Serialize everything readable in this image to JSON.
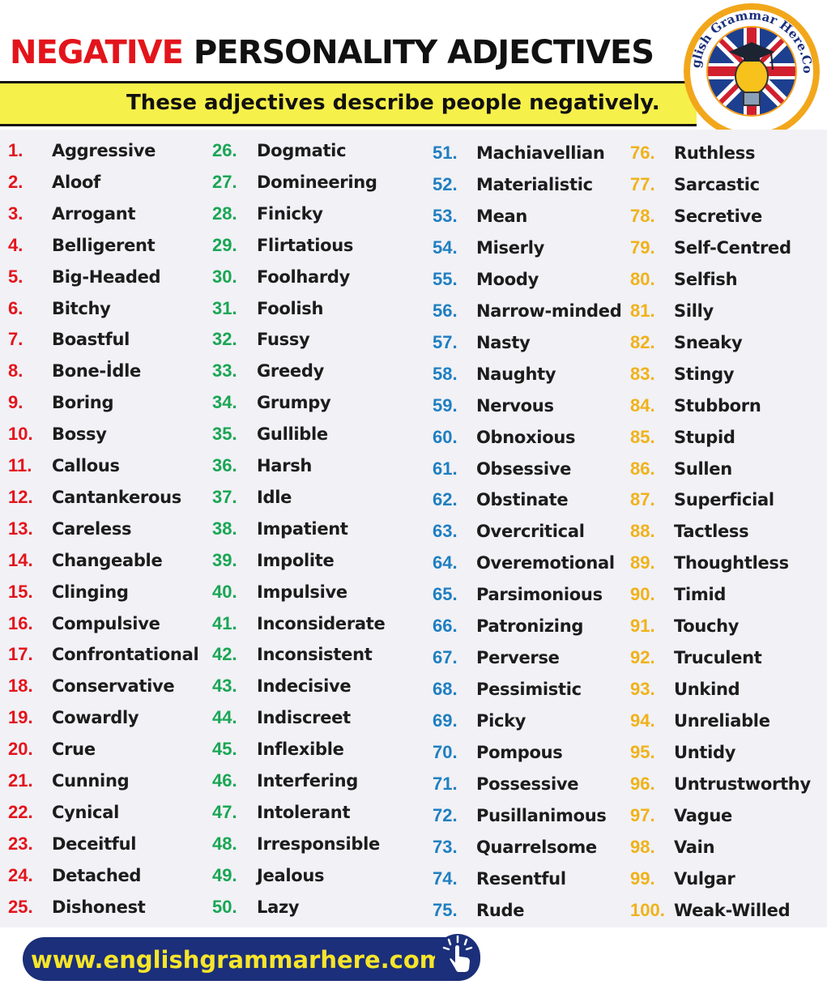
{
  "header": {
    "title_red": "NEGATIVE",
    "title_black": "PERSONALITY  ADJECTIVES",
    "subtitle": "These adjectives describe people negatively."
  },
  "logo": {
    "text": "English Grammar Here.Com"
  },
  "colors": {
    "title_red": "#e3141b",
    "subtitle_bg": "#f6f04b",
    "col1_numbers": "#e3141b",
    "col2_numbers": "#1aa654",
    "col3_numbers": "#1f7fc0",
    "col4_numbers": "#f0b21a",
    "footer_bg": "#1b2f7a",
    "footer_text": "#f6e52a"
  },
  "columns": [
    {
      "items": [
        {
          "num": "1.",
          "word": "Aggressive"
        },
        {
          "num": "2.",
          "word": "Aloof"
        },
        {
          "num": "3.",
          "word": "Arrogant"
        },
        {
          "num": "4.",
          "word": "Belligerent"
        },
        {
          "num": "5.",
          "word": "Big-Headed"
        },
        {
          "num": "6.",
          "word": "Bitchy"
        },
        {
          "num": "7.",
          "word": "Boastful"
        },
        {
          "num": "8.",
          "word": "Bone-İdle"
        },
        {
          "num": "9.",
          "word": "Boring"
        },
        {
          "num": "10.",
          "word": "Bossy"
        },
        {
          "num": "11.",
          "word": "Callous"
        },
        {
          "num": "12.",
          "word": "Cantankerous"
        },
        {
          "num": "13.",
          "word": "Careless"
        },
        {
          "num": "14.",
          "word": "Changeable"
        },
        {
          "num": "15.",
          "word": "Clinging"
        },
        {
          "num": "16.",
          "word": "Compulsive"
        },
        {
          "num": "17.",
          "word": "Confrontational"
        },
        {
          "num": "18.",
          "word": "Conservative"
        },
        {
          "num": "19.",
          "word": "Cowardly"
        },
        {
          "num": "20.",
          "word": "Crue"
        },
        {
          "num": "21.",
          "word": "Cunning"
        },
        {
          "num": "22.",
          "word": "Cynical"
        },
        {
          "num": "23.",
          "word": "Deceitful"
        },
        {
          "num": "24.",
          "word": "Detached"
        },
        {
          "num": "25.",
          "word": "Dishonest"
        }
      ]
    },
    {
      "items": [
        {
          "num": "26.",
          "word": "Dogmatic"
        },
        {
          "num": "27.",
          "word": "Domineering"
        },
        {
          "num": "28.",
          "word": "Finicky"
        },
        {
          "num": "29.",
          "word": "Flirtatious"
        },
        {
          "num": "30.",
          "word": "Foolhardy"
        },
        {
          "num": "31.",
          "word": "Foolish"
        },
        {
          "num": "32.",
          "word": "Fussy"
        },
        {
          "num": "33.",
          "word": "Greedy"
        },
        {
          "num": "34.",
          "word": "Grumpy"
        },
        {
          "num": "35.",
          "word": "Gullible"
        },
        {
          "num": "36.",
          "word": "Harsh"
        },
        {
          "num": "37.",
          "word": "Idle"
        },
        {
          "num": "38.",
          "word": "Impatient"
        },
        {
          "num": "39.",
          "word": "Impolite"
        },
        {
          "num": "40.",
          "word": "Impulsive"
        },
        {
          "num": "41.",
          "word": "Inconsiderate"
        },
        {
          "num": "42.",
          "word": "Inconsistent"
        },
        {
          "num": "43.",
          "word": "Indecisive"
        },
        {
          "num": "44.",
          "word": "Indiscreet"
        },
        {
          "num": "45.",
          "word": "Inflexible"
        },
        {
          "num": "46.",
          "word": "Interfering"
        },
        {
          "num": "47.",
          "word": "Intolerant"
        },
        {
          "num": "48.",
          "word": "Irresponsible"
        },
        {
          "num": "49.",
          "word": "Jealous"
        },
        {
          "num": "50.",
          "word": "Lazy"
        }
      ]
    },
    {
      "items": [
        {
          "num": "51.",
          "word": "Machiavellian"
        },
        {
          "num": "52.",
          "word": "Materialistic"
        },
        {
          "num": "53.",
          "word": "Mean"
        },
        {
          "num": "54.",
          "word": "Miserly"
        },
        {
          "num": "55.",
          "word": "Moody"
        },
        {
          "num": "56.",
          "word": "Narrow-minded"
        },
        {
          "num": "57.",
          "word": "Nasty"
        },
        {
          "num": "58.",
          "word": "Naughty"
        },
        {
          "num": "59.",
          "word": "Nervous"
        },
        {
          "num": "60.",
          "word": "Obnoxious"
        },
        {
          "num": "61.",
          "word": "Obsessive"
        },
        {
          "num": "62.",
          "word": "Obstinate"
        },
        {
          "num": "63.",
          "word": "Overcritical"
        },
        {
          "num": "64.",
          "word": "Overemotional"
        },
        {
          "num": "65.",
          "word": "Parsimonious"
        },
        {
          "num": "66.",
          "word": "Patronizing"
        },
        {
          "num": "67.",
          "word": "Perverse"
        },
        {
          "num": "68.",
          "word": "Pessimistic"
        },
        {
          "num": "69.",
          "word": "Picky"
        },
        {
          "num": "70.",
          "word": "Pompous"
        },
        {
          "num": "71.",
          "word": "Possessive"
        },
        {
          "num": "72.",
          "word": "Pusillanimous"
        },
        {
          "num": "73.",
          "word": "Quarrelsome"
        },
        {
          "num": "74.",
          "word": "Resentful"
        },
        {
          "num": "75.",
          "word": "Rude"
        }
      ]
    },
    {
      "items": [
        {
          "num": "76.",
          "word": "Ruthless"
        },
        {
          "num": "77.",
          "word": "Sarcastic"
        },
        {
          "num": "78.",
          "word": "Secretive"
        },
        {
          "num": "79.",
          "word": "Self-Centred"
        },
        {
          "num": "80.",
          "word": "Selfish"
        },
        {
          "num": "81.",
          "word": "Silly"
        },
        {
          "num": "82.",
          "word": "Sneaky"
        },
        {
          "num": "83.",
          "word": "Stingy"
        },
        {
          "num": "84.",
          "word": "Stubborn"
        },
        {
          "num": "85.",
          "word": "Stupid"
        },
        {
          "num": "86.",
          "word": "Sullen"
        },
        {
          "num": "87.",
          "word": "Superficial"
        },
        {
          "num": "88.",
          "word": "Tactless"
        },
        {
          "num": "89.",
          "word": "Thoughtless"
        },
        {
          "num": "90.",
          "word": "Timid"
        },
        {
          "num": "91.",
          "word": "Touchy"
        },
        {
          "num": "92.",
          "word": "Truculent"
        },
        {
          "num": "93.",
          "word": "Unkind"
        },
        {
          "num": "94.",
          "word": "Unreliable"
        },
        {
          "num": "95.",
          "word": "Untidy"
        },
        {
          "num": "96.",
          "word": "Untrustworthy"
        },
        {
          "num": "97.",
          "word": "Vague"
        },
        {
          "num": "98.",
          "word": "Vain"
        },
        {
          "num": "99.",
          "word": "Vulgar"
        },
        {
          "num": "100.",
          "word": "Weak-Willed"
        }
      ]
    }
  ],
  "footer": {
    "url": "www.englishgrammarhere.com"
  }
}
